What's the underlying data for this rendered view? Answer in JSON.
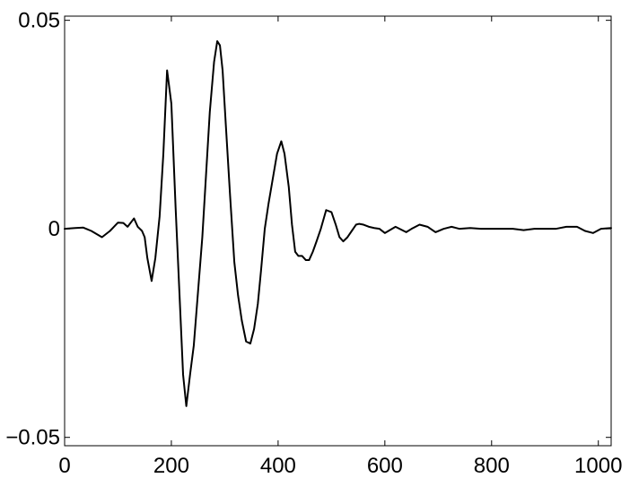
{
  "chart_data": {
    "type": "line",
    "title": "",
    "xlabel": "",
    "ylabel": "",
    "xlim": [
      0,
      1024
    ],
    "ylim": [
      -0.052,
      0.051
    ],
    "grid": false,
    "legend": "none",
    "colors": {
      "line": "#000000",
      "axes": "#000000",
      "background": "#ffffff"
    },
    "x_ticks": [
      {
        "value": 0,
        "label": "0"
      },
      {
        "value": 200,
        "label": "200"
      },
      {
        "value": 400,
        "label": "400"
      },
      {
        "value": 600,
        "label": "600"
      },
      {
        "value": 800,
        "label": "800"
      },
      {
        "value": 1000,
        "label": "1000"
      }
    ],
    "y_ticks": [
      {
        "value": 0.05,
        "label": "0.05"
      },
      {
        "value": 0,
        "label": "0"
      },
      {
        "value": -0.05,
        "label": "−0.05"
      }
    ],
    "series": [
      {
        "x": [
          0,
          20,
          35,
          50,
          70,
          85,
          100,
          110,
          118,
          130,
          137,
          145,
          150,
          155,
          163,
          170,
          178,
          185,
          192,
          200,
          208,
          215,
          222,
          228,
          235,
          242,
          250,
          258,
          265,
          272,
          280,
          286,
          291,
          296,
          302,
          310,
          318,
          325,
          332,
          340,
          348,
          355,
          362,
          368,
          375,
          382,
          390,
          398,
          406,
          412,
          420,
          426,
          432,
          438,
          445,
          452,
          458,
          465,
          472,
          480,
          490,
          500,
          508,
          515,
          522,
          530,
          538,
          546,
          552,
          560,
          570,
          580,
          590,
          600,
          620,
          640,
          650,
          665,
          680,
          695,
          710,
          725,
          740,
          760,
          780,
          800,
          820,
          840,
          860,
          880,
          900,
          920,
          940,
          960,
          975,
          990,
          1005,
          1024
        ],
        "y": [
          0,
          0.0002,
          0.0003,
          -0.0005,
          -0.002,
          -0.0005,
          0.0015,
          0.0014,
          0.0005,
          0.0025,
          0.0005,
          -0.0005,
          -0.002,
          -0.007,
          -0.0125,
          -0.007,
          0.003,
          0.018,
          0.038,
          0.03,
          0.005,
          -0.015,
          -0.035,
          -0.0425,
          -0.035,
          -0.028,
          -0.015,
          -0.002,
          0.013,
          0.028,
          0.04,
          0.045,
          0.044,
          0.038,
          0.025,
          0.008,
          -0.008,
          -0.016,
          -0.022,
          -0.027,
          -0.0275,
          -0.024,
          -0.018,
          -0.01,
          0,
          0.006,
          0.012,
          0.018,
          0.021,
          0.018,
          0.01,
          0.001,
          -0.0055,
          -0.0065,
          -0.0065,
          -0.0075,
          -0.0075,
          -0.0055,
          -0.003,
          0,
          0.0045,
          0.004,
          0.001,
          -0.002,
          -0.003,
          -0.002,
          -0.0005,
          0.001,
          0.0012,
          0.001,
          0.0005,
          0.0002,
          0,
          -0.001,
          0.0005,
          -0.0008,
          0,
          0.001,
          0.0005,
          -0.0008,
          0,
          0.0005,
          0,
          0.0002,
          0,
          0,
          0,
          0,
          -0.0003,
          0,
          0,
          0,
          0.0005,
          0.0005,
          -0.0005,
          -0.001,
          0,
          0.0002
        ]
      }
    ]
  }
}
